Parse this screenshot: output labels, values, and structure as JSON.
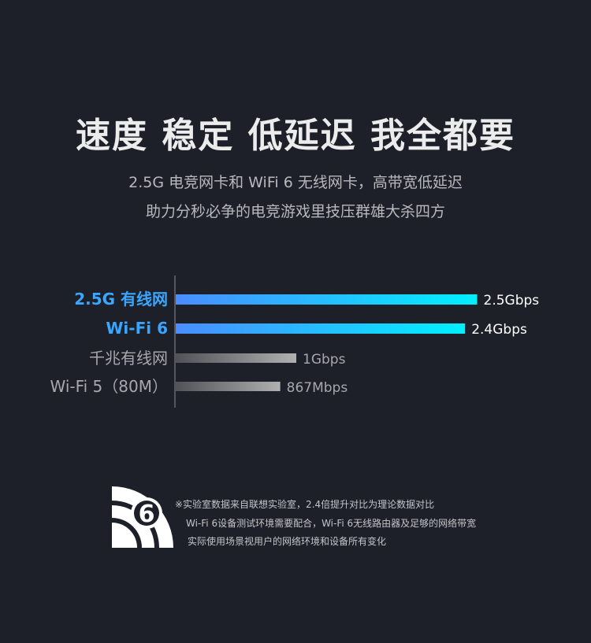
{
  "headline": "速度 稳定 低延迟 我全都要",
  "subtitle": [
    "2.5G 电竞网卡和 WiFi 6 无线网卡，高带宽低延迟",
    "助力分秒必争的电竞游戏里技压群雄大杀四方"
  ],
  "chart_data": {
    "type": "bar",
    "orientation": "horizontal",
    "categories": [
      "2.5G 有线网",
      "Wi-Fi 6",
      "千兆有线网",
      "Wi-Fi 5（80M）"
    ],
    "values": [
      2.5,
      2.4,
      1.0,
      0.867
    ],
    "unit": "Gbps",
    "data_labels": [
      "2.5Gbps",
      "2.4Gbps",
      "1Gbps",
      "867Mbps"
    ],
    "highlight": [
      true,
      true,
      false,
      false
    ],
    "colors": {
      "highlight_label": "#3aa6ff",
      "highlight_bar_start": "#4a8dff",
      "highlight_bar_end": "#00f0ff",
      "muted_label": "#a7a8ac",
      "muted_bar_start": "#555",
      "muted_bar_end": "#b0b0b0"
    },
    "grid": false
  },
  "logo": {
    "icon": "wifi-6-icon",
    "text": "6"
  },
  "notes": [
    "※实验室数据来自联想实验室，2.4倍提升对比为理论数据对比",
    "Wi-Fi 6设备测试环境需要配合，Wi-Fi 6无线路由器及足够的网络带宽",
    "实际使用场景视用户的网络环境和设备所有变化"
  ]
}
